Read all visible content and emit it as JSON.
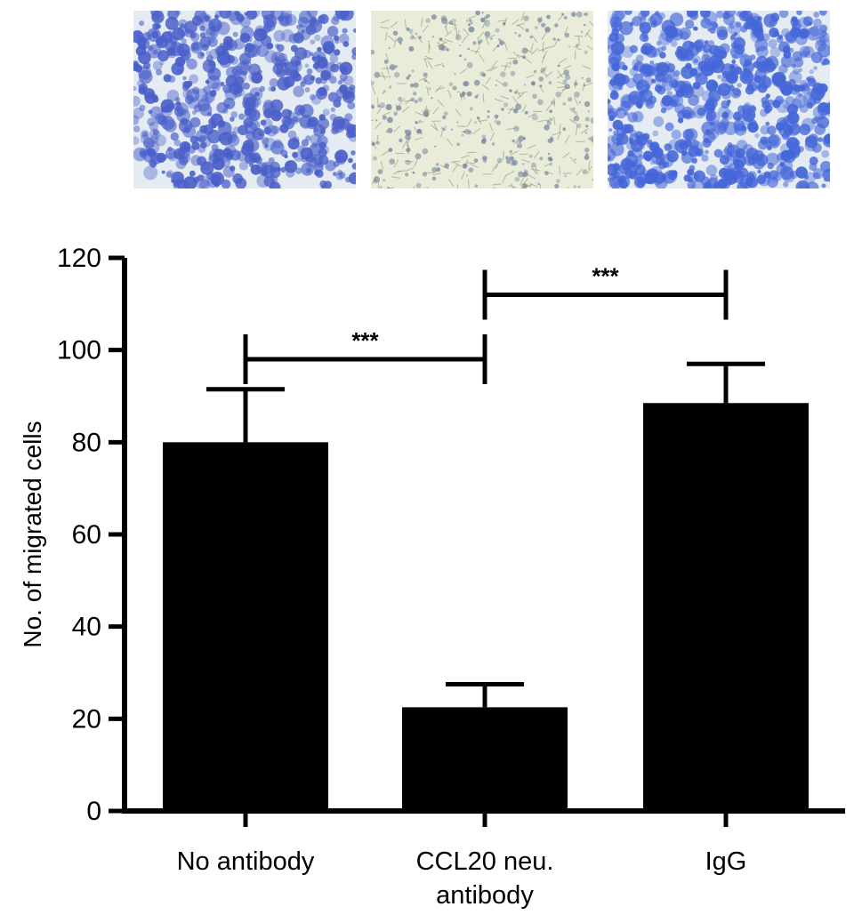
{
  "panels": [
    {
      "stain": "#4a5fc9",
      "density": 0.55
    },
    {
      "stain": "#6d7f9a",
      "density": 0.2
    },
    {
      "stain": "#4566d8",
      "density": 0.7
    }
  ],
  "colors": {
    "bar": "#000000",
    "panel_bg": "#e4ecf1",
    "panel2_bg": "#e8ecd9"
  },
  "chart_data": {
    "type": "bar",
    "categories": [
      "No antibody",
      "CCL20 neu.\nantibody",
      "IgG"
    ],
    "values": [
      80,
      22.5,
      88.5
    ],
    "errors": [
      11.5,
      5,
      8.5
    ],
    "ylabel": "No. of migrated cells",
    "ylim": [
      0,
      120
    ],
    "yticks": [
      0,
      20,
      40,
      60,
      80,
      100,
      120
    ],
    "significance": [
      {
        "from": 0,
        "to": 1,
        "label": "***",
        "y": 98
      },
      {
        "from": 1,
        "to": 2,
        "label": "***",
        "y": 112
      }
    ]
  }
}
